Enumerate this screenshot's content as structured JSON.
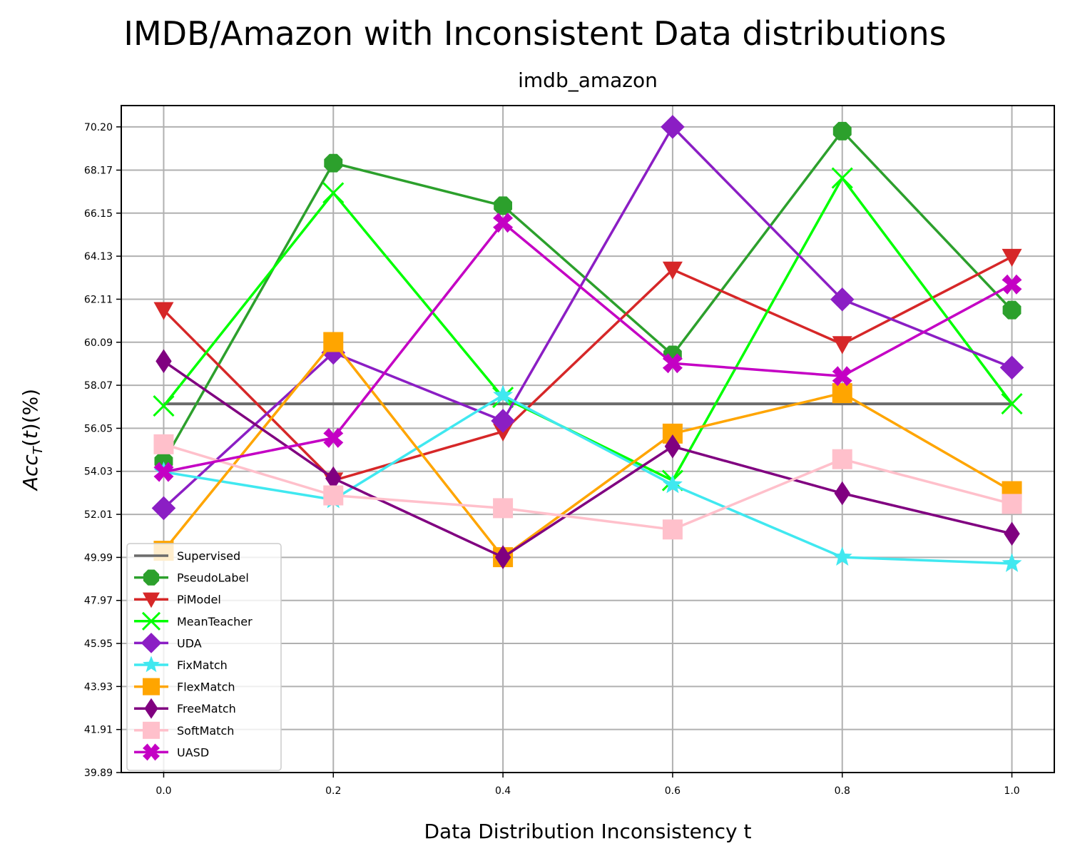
{
  "page": {
    "suptitle": "IMDB/Amazon with Inconsistent Data distributions"
  },
  "chart_data": {
    "type": "line",
    "title": "imdb_amazon",
    "xlabel": "Data Distribution Inconsistency t",
    "ylabel": "Acc_T(t)(%)",
    "x": [
      0.0,
      0.2,
      0.4,
      0.6,
      0.8,
      1.0
    ],
    "x_tick_labels": [
      "0.0",
      "0.2",
      "0.4",
      "0.6",
      "0.8",
      "1.0"
    ],
    "xlim": [
      -0.05,
      1.05
    ],
    "ylim": [
      39.89,
      71.2
    ],
    "y_ticks": [
      39.89,
      41.91,
      43.93,
      45.95,
      47.97,
      49.99,
      52.01,
      54.03,
      56.05,
      58.07,
      60.09,
      62.11,
      64.13,
      66.15,
      68.17,
      70.2
    ],
    "y_tick_labels": [
      "39.89",
      "41.91",
      "43.93",
      "45.95",
      "47.97",
      "49.99",
      "52.01",
      "54.03",
      "56.05",
      "58.07",
      "60.09",
      "62.11",
      "64.13",
      "66.15",
      "68.17",
      "70.20"
    ],
    "grid": true,
    "legend_position": "lower-left",
    "series": [
      {
        "name": "Supervised",
        "color": "#6b6b6b",
        "marker": "none",
        "values": [
          57.2,
          57.2,
          57.2,
          57.2,
          57.2,
          57.2
        ]
      },
      {
        "name": "PseudoLabel",
        "color": "#2ca02c",
        "marker": "octagon",
        "values": [
          54.5,
          68.5,
          66.5,
          59.5,
          70.0,
          61.6
        ]
      },
      {
        "name": "PiModel",
        "color": "#d62728",
        "marker": "triangle-down",
        "values": [
          61.6,
          53.6,
          55.9,
          63.5,
          60.0,
          64.1
        ]
      },
      {
        "name": "MeanTeacher",
        "color": "#00ff00",
        "marker": "x",
        "values": [
          57.1,
          67.1,
          57.5,
          53.6,
          67.8,
          57.2
        ]
      },
      {
        "name": "UDA",
        "color": "#8b1ec4",
        "marker": "diamond",
        "values": [
          52.3,
          59.6,
          56.4,
          70.2,
          62.1,
          58.9
        ]
      },
      {
        "name": "FixMatch",
        "color": "#40e8f0",
        "marker": "star",
        "values": [
          54.0,
          52.7,
          57.6,
          53.4,
          50.0,
          49.7
        ]
      },
      {
        "name": "FlexMatch",
        "color": "#ffa500",
        "marker": "square",
        "values": [
          50.3,
          60.1,
          50.0,
          55.8,
          57.7,
          53.1
        ]
      },
      {
        "name": "FreeMatch",
        "color": "#800080",
        "marker": "thin-diamond",
        "values": [
          59.2,
          53.7,
          50.0,
          55.2,
          53.0,
          51.1
        ]
      },
      {
        "name": "SoftMatch",
        "color": "#ffc0cb",
        "marker": "square",
        "values": [
          55.3,
          52.9,
          52.3,
          51.3,
          54.6,
          52.5
        ]
      },
      {
        "name": "UASD",
        "color": "#c400c4",
        "marker": "x-filled",
        "values": [
          54.0,
          55.6,
          65.7,
          59.1,
          58.5,
          62.8
        ]
      }
    ]
  }
}
